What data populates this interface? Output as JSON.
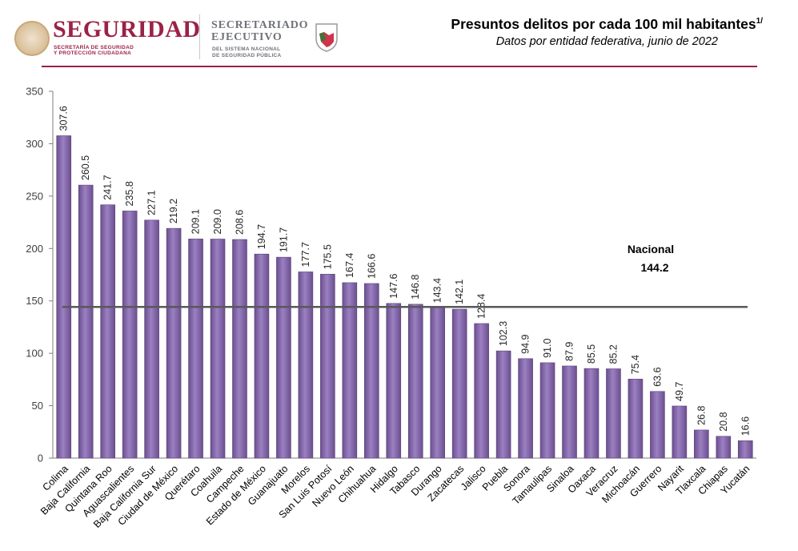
{
  "header": {
    "brand": "SEGURIDAD",
    "brand_sub_1": "SECRETARÍA DE SEGURIDAD",
    "brand_sub_2": "Y PROTECCIÓN CIUDADANA",
    "secretariado_1": "SECRETARIADO",
    "secretariado_2": "EJECUTIVO",
    "secretariado_sub_1": "DEL SISTEMA NACIONAL",
    "secretariado_sub_2": "DE SEGURIDAD PÚBLICA",
    "title": "Presuntos delitos por cada 100 mil habitantes",
    "title_superscript": "1/",
    "subtitle": "Datos por entidad federativa, junio de 2022"
  },
  "colors": {
    "accent": "#9b2247",
    "bar_fill": "#8064a2",
    "reference_line": "#595959"
  },
  "chart_data": {
    "type": "bar",
    "categories": [
      "Colima",
      "Baja California",
      "Quintana Roo",
      "Aguascalientes",
      "Baja California Sur",
      "Ciudad de México",
      "Querétaro",
      "Coahuila",
      "Campeche",
      "Estado de México",
      "Guanajuato",
      "Morelos",
      "San Luis Potosí",
      "Nuevo León",
      "Chihuahua",
      "Hidalgo",
      "Tabasco",
      "Durango",
      "Zacatecas",
      "Jalisco",
      "Puebla",
      "Sonora",
      "Tamaulipas",
      "Sinaloa",
      "Oaxaca",
      "Veracruz",
      "Michoacán",
      "Guerrero",
      "Nayarit",
      "Tlaxcala",
      "Chiapas",
      "Yucatán"
    ],
    "values": [
      307.6,
      260.5,
      241.7,
      235.8,
      227.1,
      219.2,
      209.1,
      209.0,
      208.6,
      194.7,
      191.7,
      177.7,
      175.5,
      167.4,
      166.6,
      147.6,
      146.8,
      143.4,
      142.1,
      128.4,
      102.3,
      94.9,
      91.0,
      87.9,
      85.5,
      85.2,
      75.4,
      63.6,
      49.7,
      26.8,
      20.8,
      16.6
    ],
    "value_labels": [
      "307.6",
      "260.5",
      "241.7",
      "235.8",
      "227.1",
      "219.2",
      "209.1",
      "209.0",
      "208.6",
      "194.7",
      "191.7",
      "177.7",
      "175.5",
      "167.4",
      "166.6",
      "147.6",
      "146.8",
      "143.4",
      "142.1",
      "128.4",
      "102.3",
      "94.9",
      "91.0",
      "87.9",
      "85.5",
      "85.2",
      "75.4",
      "63.6",
      "49.7",
      "26.8",
      "20.8",
      "16.6"
    ],
    "ylim": [
      0,
      350
    ],
    "yticks": [
      0,
      50,
      100,
      150,
      200,
      250,
      300,
      350
    ],
    "ytick_labels": [
      "0",
      "50",
      "100",
      "150",
      "200",
      "250",
      "300",
      "350"
    ],
    "reference": {
      "label": "Nacional",
      "value": 144.2,
      "value_label": "144.2"
    },
    "grid": false,
    "legend": "none"
  }
}
